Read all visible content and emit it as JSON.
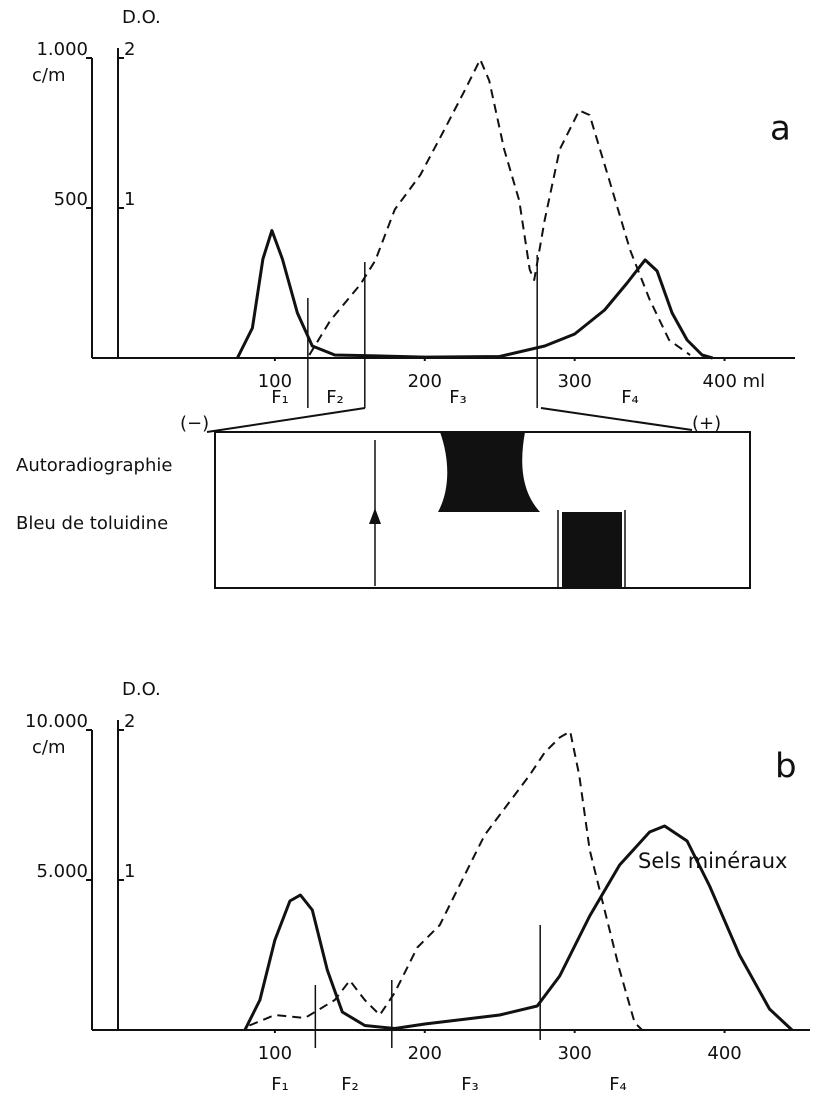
{
  "chart_data": [
    {
      "type": "line",
      "panel_label": "a",
      "y_label": "c/m",
      "y2_label": "D.O.",
      "xlim": [
        -22,
        447
      ],
      "xticks": [
        100,
        200,
        300,
        {
          "value": 400,
          "label": "400 ml"
        }
      ],
      "ylim": [
        0,
        1000
      ],
      "yticks": [
        {
          "value": 1000,
          "label": "1.000"
        },
        500
      ],
      "y2lim": [
        0,
        2
      ],
      "y2ticks": [
        2,
        1
      ],
      "series": [
        {
          "color": "#111111",
          "style": "solid",
          "axis": "y",
          "x": [
            75,
            85,
            92,
            98,
            105,
            115,
            125,
            140,
            160,
            200,
            250,
            280,
            300,
            320,
            335,
            347,
            355,
            365,
            375,
            385,
            392
          ],
          "values": [
            0,
            100,
            330,
            425,
            330,
            150,
            40,
            10,
            8,
            3,
            5,
            40,
            80,
            160,
            250,
            327,
            290,
            150,
            60,
            10,
            0
          ]
        },
        {
          "color": "#111111",
          "style": "dashed",
          "axis": "y2",
          "x": [
            123,
            137,
            157,
            167,
            180,
            197,
            213,
            227,
            237,
            243,
            253,
            263,
            270,
            273,
            280,
            290,
            303,
            310,
            323,
            337,
            350,
            363,
            377
          ],
          "values": [
            0.02,
            0.25,
            0.49,
            0.65,
            0.99,
            1.22,
            1.52,
            1.79,
            1.99,
            1.85,
            1.39,
            1.05,
            0.59,
            0.52,
            0.92,
            1.39,
            1.65,
            1.62,
            1.19,
            0.72,
            0.39,
            0.12,
            0.02
          ]
        }
      ],
      "fractions": {
        "labels": [
          "F₁",
          "F₂",
          "F₃",
          "F₄"
        ],
        "bounds": [
          122,
          160,
          275
        ]
      },
      "electrophoresis": {
        "minus": "(−)",
        "plus": "(+)",
        "rows": [
          "Autoradiographie",
          "Bleu de toluidine"
        ]
      }
    },
    {
      "type": "line",
      "panel_label": "b",
      "y_label": "c/m",
      "y2_label": "D.O.",
      "xlim": [
        -22,
        457
      ],
      "xticks": [
        100,
        200,
        300,
        400
      ],
      "ylim": [
        0,
        10000
      ],
      "yticks": [
        {
          "value": 10000,
          "label": "10.000"
        },
        {
          "value": 5000,
          "label": "5.000"
        }
      ],
      "y2lim": [
        0,
        2
      ],
      "y2ticks": [
        2,
        1
      ],
      "series": [
        {
          "color": "#111111",
          "style": "solid",
          "axis": "y",
          "x": [
            80,
            90,
            100,
            110,
            117,
            125,
            135,
            145,
            160,
            180,
            200,
            250,
            275,
            290,
            310,
            330,
            350,
            360,
            375,
            390,
            410,
            430,
            445
          ],
          "values": [
            0,
            1000,
            3000,
            4300,
            4500,
            4000,
            2000,
            600,
            150,
            50,
            200,
            500,
            800,
            1800,
            3800,
            5500,
            6600,
            6800,
            6300,
            4800,
            2500,
            700,
            0
          ]
        },
        {
          "color": "#111111",
          "style": "dashed",
          "axis": "y2",
          "x": [
            83,
            100,
            120,
            140,
            150,
            160,
            170,
            180,
            195,
            210,
            225,
            240,
            255,
            270,
            280,
            290,
            297,
            303,
            310,
            320,
            330,
            340,
            345
          ],
          "values": [
            0.03,
            0.1,
            0.08,
            0.2,
            0.33,
            0.2,
            0.1,
            0.25,
            0.55,
            0.7,
            1.0,
            1.3,
            1.5,
            1.7,
            1.85,
            1.95,
            1.99,
            1.7,
            1.2,
            0.8,
            0.4,
            0.05,
            0
          ]
        }
      ],
      "fractions": {
        "labels": [
          "F₁",
          "F₂",
          "F₃",
          "F₄"
        ],
        "bounds": [
          127,
          178,
          277
        ]
      },
      "annotation": "Sels minéraux"
    }
  ]
}
